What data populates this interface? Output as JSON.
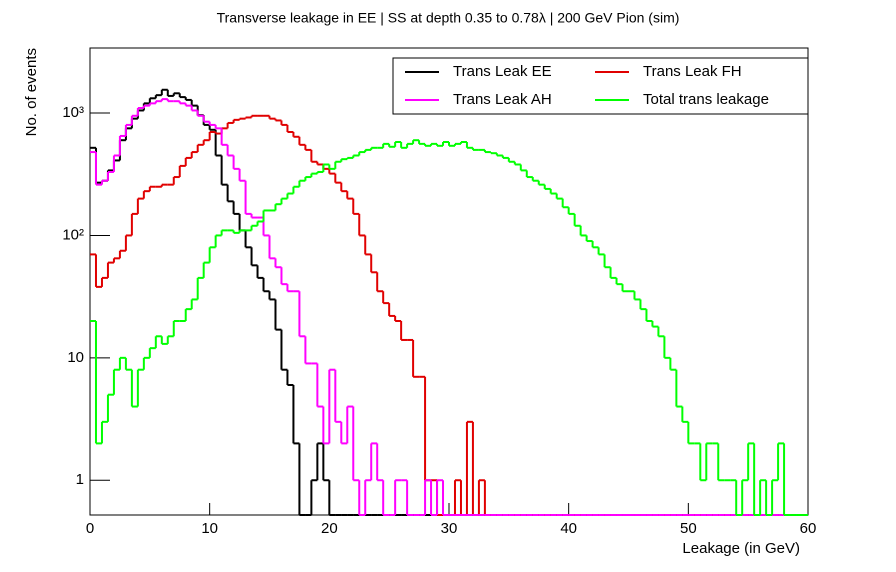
{
  "chart_data": {
    "type": "histogram",
    "title": "Transverse leakage in EE | SS at depth 0.35 to 0.78λ | 200 GeV Pion (sim)",
    "x_label": "Leakage (in GeV)",
    "y_label": "No. of events",
    "log_y": true,
    "legend": "top-right",
    "xlim": [
      0,
      60
    ],
    "xticks": [
      0,
      10,
      20,
      30,
      40,
      50,
      60
    ],
    "ylim": [
      0.52,
      3400
    ],
    "yticks": [
      1,
      10,
      {
        "value": 100,
        "label": "10²"
      },
      {
        "value": 1000,
        "label": "10³"
      }
    ],
    "bins": [
      0,
      0.5,
      1,
      1.5,
      2,
      2.5,
      3,
      3.5,
      4,
      4.5,
      5,
      5.5,
      6,
      6.5,
      7,
      7.5,
      8,
      8.5,
      9,
      9.5,
      10,
      10.5,
      11,
      11.5,
      12,
      12.5,
      13,
      13.5,
      14,
      14.5,
      15,
      15.5,
      16,
      16.5,
      17,
      17.5,
      18,
      18.5,
      19,
      19.5,
      20,
      20.5,
      21,
      21.5,
      22,
      22.5,
      23,
      23.5,
      24,
      24.5,
      25,
      25.5,
      26,
      26.5,
      27,
      27.5,
      28,
      28.5,
      29,
      29.5,
      30,
      30.5,
      31,
      31.5,
      32,
      32.5,
      33,
      33.5,
      34,
      34.5,
      35,
      35.5,
      36,
      36.5,
      37,
      37.5,
      38,
      38.5,
      39,
      39.5,
      40,
      40.5,
      41,
      41.5,
      42,
      42.5,
      43,
      43.5,
      44,
      44.5,
      45,
      45.5,
      46,
      46.5,
      47,
      47.5,
      48,
      48.5,
      49,
      49.5,
      50,
      50.5,
      51,
      51.5,
      52,
      52.5,
      53,
      53.5,
      54,
      54.5,
      55,
      55.5,
      56,
      56.5,
      57,
      57.5,
      58,
      58.5,
      59,
      59.5,
      60
    ],
    "series": [
      {
        "name": "Trans Leak EE",
        "color": "#000000",
        "values": [
          520,
          270,
          280,
          340,
          410,
          600,
          750,
          900,
          1050,
          1200,
          1320,
          1400,
          1550,
          1380,
          1450,
          1350,
          1280,
          1150,
          960,
          800,
          730,
          450,
          260,
          190,
          150,
          110,
          80,
          57,
          45,
          35,
          30,
          17,
          8,
          6,
          2,
          0,
          0,
          1,
          2,
          1,
          0,
          0,
          0,
          0,
          0,
          0,
          0,
          0,
          0,
          0,
          0,
          0,
          0,
          0,
          0,
          0,
          0,
          0,
          0,
          0,
          0,
          0,
          0,
          0,
          0,
          0,
          0,
          0,
          0,
          0,
          0,
          0,
          0,
          0,
          0,
          0,
          0,
          0,
          0,
          0,
          0,
          0,
          0,
          0,
          0,
          0,
          0,
          0,
          0,
          0,
          0,
          0,
          0,
          0,
          0,
          0,
          0,
          0,
          0,
          0,
          0,
          0,
          0,
          0,
          0,
          0,
          0,
          0,
          0,
          0,
          0,
          0,
          0,
          0,
          0,
          0,
          0,
          0,
          0,
          0
        ]
      },
      {
        "name": "Trans Leak FH",
        "color": "#e00000",
        "values": [
          70,
          38,
          45,
          60,
          65,
          75,
          100,
          150,
          200,
          230,
          250,
          250,
          260,
          260,
          300,
          370,
          430,
          480,
          550,
          600,
          700,
          680,
          750,
          830,
          880,
          900,
          920,
          950,
          950,
          950,
          900,
          870,
          800,
          700,
          640,
          550,
          500,
          400,
          380,
          350,
          320,
          270,
          230,
          200,
          150,
          100,
          70,
          50,
          35,
          28,
          22,
          20,
          14,
          14,
          7,
          7,
          1,
          1,
          0,
          0,
          0,
          1,
          0,
          3,
          0,
          1,
          0,
          0,
          0,
          0,
          0,
          0,
          0,
          0,
          0,
          0,
          0,
          0,
          0,
          0,
          0,
          0,
          0,
          0,
          0,
          0,
          0,
          0,
          0,
          0,
          0,
          0,
          0,
          0,
          0,
          0,
          0,
          0,
          0,
          0,
          0,
          0,
          0,
          0,
          0,
          0,
          0,
          0,
          0,
          0,
          0,
          0,
          0,
          0,
          0,
          0,
          0,
          0,
          0,
          0
        ]
      },
      {
        "name": "Trans Leak AH",
        "color": "#ff00ff",
        "values": [
          480,
          260,
          280,
          330,
          450,
          650,
          800,
          950,
          1100,
          1150,
          1200,
          1250,
          1300,
          1250,
          1250,
          1200,
          1150,
          1050,
          950,
          850,
          800,
          750,
          550,
          450,
          350,
          280,
          150,
          140,
          140,
          100,
          65,
          55,
          40,
          35,
          35,
          15,
          9,
          9,
          4,
          2,
          8,
          3,
          2,
          4,
          1,
          0,
          1,
          2,
          1,
          0,
          0,
          1,
          1,
          0,
          0,
          0,
          1,
          0,
          1,
          0,
          0,
          0,
          0,
          0,
          0,
          0,
          0,
          0,
          0,
          0,
          0,
          0,
          0,
          0,
          0,
          0,
          0,
          0,
          0,
          0,
          0,
          0,
          0,
          0,
          0,
          0,
          0,
          0,
          0,
          0,
          0,
          0,
          0,
          0,
          0,
          0,
          0,
          0,
          0,
          0,
          0,
          0,
          0,
          0,
          0,
          0,
          0,
          0,
          0,
          0,
          0,
          0,
          0,
          0,
          0,
          0,
          0,
          0,
          0,
          0
        ]
      },
      {
        "name": "Total trans leakage",
        "color": "#00ff00",
        "values": [
          20,
          2,
          3,
          5,
          8,
          10,
          8,
          4,
          8,
          10,
          12,
          15,
          13,
          15,
          20,
          20,
          25,
          30,
          45,
          60,
          80,
          100,
          110,
          110,
          105,
          110,
          110,
          120,
          130,
          160,
          160,
          180,
          200,
          220,
          250,
          280,
          300,
          320,
          330,
          380,
          350,
          400,
          420,
          430,
          450,
          480,
          500,
          520,
          520,
          560,
          530,
          580,
          520,
          560,
          600,
          560,
          540,
          560,
          540,
          580,
          540,
          560,
          580,
          520,
          500,
          500,
          480,
          470,
          450,
          430,
          400,
          380,
          340,
          300,
          280,
          260,
          240,
          220,
          200,
          170,
          150,
          120,
          100,
          90,
          80,
          70,
          55,
          45,
          40,
          35,
          35,
          30,
          25,
          20,
          18,
          15,
          10,
          8,
          4,
          3,
          2,
          2,
          1,
          2,
          2,
          1,
          1,
          1,
          0,
          1,
          2,
          0,
          1,
          0,
          1,
          2,
          0,
          0,
          0,
          0
        ]
      }
    ]
  }
}
